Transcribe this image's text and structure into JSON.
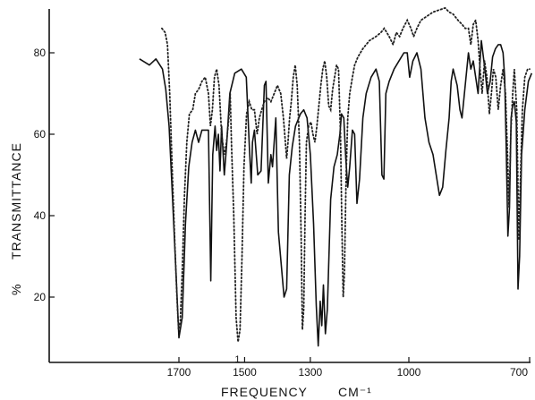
{
  "chart_data": {
    "type": "line",
    "xlabel": "FREQUENCY",
    "xunit": "CM⁻¹",
    "ylabel": "TRANSMITTANCE",
    "ylabel_prefix": "%",
    "x_ticks": [
      "1700",
      "1500",
      "1300",
      "1000",
      "700"
    ],
    "y_ticks": [
      "80",
      "60",
      "40",
      "20"
    ],
    "annotation": "1",
    "grid": false,
    "series": [
      {
        "style": "solid",
        "points": [
          [
            1820,
            78.5
          ],
          [
            1790,
            77
          ],
          [
            1770,
            78.5
          ],
          [
            1750,
            76
          ],
          [
            1740,
            71
          ],
          [
            1730,
            62
          ],
          [
            1720,
            45
          ],
          [
            1710,
            28
          ],
          [
            1700,
            10
          ],
          [
            1690,
            15
          ],
          [
            1680,
            38
          ],
          [
            1670,
            52
          ],
          [
            1660,
            58
          ],
          [
            1650,
            61
          ],
          [
            1640,
            58
          ],
          [
            1630,
            61
          ],
          [
            1610,
            61
          ],
          [
            1603,
            24
          ],
          [
            1597,
            55
          ],
          [
            1590,
            62
          ],
          [
            1585,
            56
          ],
          [
            1580,
            60
          ],
          [
            1575,
            51
          ],
          [
            1570,
            62
          ],
          [
            1562,
            50
          ],
          [
            1555,
            57
          ],
          [
            1545,
            70
          ],
          [
            1530,
            75
          ],
          [
            1510,
            76
          ],
          [
            1495,
            74
          ],
          [
            1485,
            56
          ],
          [
            1480,
            48
          ],
          [
            1476,
            58
          ],
          [
            1470,
            61
          ],
          [
            1460,
            50
          ],
          [
            1450,
            51
          ],
          [
            1440,
            72
          ],
          [
            1435,
            73
          ],
          [
            1428,
            48
          ],
          [
            1420,
            55
          ],
          [
            1415,
            52
          ],
          [
            1405,
            64
          ],
          [
            1397,
            36
          ],
          [
            1380,
            20
          ],
          [
            1372,
            22
          ],
          [
            1364,
            50
          ],
          [
            1355,
            57
          ],
          [
            1345,
            62
          ],
          [
            1330,
            65
          ],
          [
            1320,
            66
          ],
          [
            1310,
            64
          ],
          [
            1300,
            55
          ],
          [
            1290,
            38
          ],
          [
            1282,
            18
          ],
          [
            1276,
            8
          ],
          [
            1270,
            19
          ],
          [
            1265,
            13
          ],
          [
            1260,
            23
          ],
          [
            1254,
            11
          ],
          [
            1248,
            17
          ],
          [
            1238,
            44
          ],
          [
            1228,
            52
          ],
          [
            1218,
            55
          ],
          [
            1210,
            60
          ],
          [
            1205,
            65
          ],
          [
            1198,
            64
          ],
          [
            1192,
            54
          ],
          [
            1186,
            47
          ],
          [
            1180,
            52
          ],
          [
            1172,
            61
          ],
          [
            1165,
            60
          ],
          [
            1158,
            43
          ],
          [
            1150,
            49
          ],
          [
            1140,
            64
          ],
          [
            1130,
            70
          ],
          [
            1115,
            74
          ],
          [
            1100,
            76
          ],
          [
            1090,
            73
          ],
          [
            1082,
            50
          ],
          [
            1076,
            49
          ],
          [
            1070,
            70
          ],
          [
            1060,
            73
          ],
          [
            1045,
            76
          ],
          [
            1030,
            78
          ],
          [
            1015,
            80
          ],
          [
            1005,
            80
          ],
          [
            998,
            74
          ],
          [
            990,
            78
          ],
          [
            980,
            80
          ],
          [
            970,
            76
          ],
          [
            960,
            64
          ],
          [
            950,
            58
          ],
          [
            940,
            55
          ],
          [
            932,
            50
          ],
          [
            924,
            45
          ],
          [
            916,
            47
          ],
          [
            908,
            56
          ],
          [
            900,
            64
          ],
          [
            895,
            73
          ],
          [
            890,
            76
          ],
          [
            880,
            72
          ],
          [
            873,
            66
          ],
          [
            868,
            64
          ],
          [
            860,
            72
          ],
          [
            852,
            80
          ],
          [
            846,
            76
          ],
          [
            840,
            78
          ],
          [
            834,
            74
          ],
          [
            828,
            70
          ],
          [
            820,
            83
          ],
          [
            815,
            79
          ],
          [
            810,
            75
          ],
          [
            805,
            70
          ],
          [
            798,
            73
          ],
          [
            792,
            79
          ],
          [
            785,
            81
          ],
          [
            778,
            82
          ],
          [
            772,
            82
          ],
          [
            766,
            80
          ],
          [
            762,
            74
          ],
          [
            758,
            56
          ],
          [
            754,
            35
          ],
          [
            750,
            42
          ],
          [
            746,
            64
          ],
          [
            742,
            67
          ],
          [
            738,
            68
          ],
          [
            733,
            63
          ],
          [
            729,
            22
          ],
          [
            725,
            30
          ],
          [
            720,
            55
          ],
          [
            712,
            66
          ],
          [
            703,
            73
          ],
          [
            695,
            75
          ]
        ]
      },
      {
        "style": "dotted",
        "points": [
          [
            1752,
            86
          ],
          [
            1742,
            85
          ],
          [
            1735,
            82
          ],
          [
            1728,
            70
          ],
          [
            1720,
            50
          ],
          [
            1712,
            32
          ],
          [
            1706,
            20
          ],
          [
            1701,
            12
          ],
          [
            1696,
            14
          ],
          [
            1690,
            26
          ],
          [
            1683,
            45
          ],
          [
            1676,
            58
          ],
          [
            1668,
            65
          ],
          [
            1658,
            66
          ],
          [
            1650,
            70
          ],
          [
            1640,
            71
          ],
          [
            1630,
            73
          ],
          [
            1620,
            74
          ],
          [
            1610,
            70
          ],
          [
            1604,
            62
          ],
          [
            1598,
            66
          ],
          [
            1592,
            74
          ],
          [
            1585,
            76
          ],
          [
            1578,
            72
          ],
          [
            1570,
            60
          ],
          [
            1562,
            55
          ],
          [
            1555,
            58
          ],
          [
            1548,
            64
          ],
          [
            1544,
            70
          ],
          [
            1540,
            58
          ],
          [
            1533,
            40
          ],
          [
            1526,
            15
          ],
          [
            1520,
            9
          ],
          [
            1514,
            12
          ],
          [
            1508,
            30
          ],
          [
            1502,
            52
          ],
          [
            1494,
            65
          ],
          [
            1486,
            68
          ],
          [
            1478,
            66
          ],
          [
            1470,
            66
          ],
          [
            1462,
            60
          ],
          [
            1455,
            64
          ],
          [
            1448,
            66
          ],
          [
            1440,
            68
          ],
          [
            1430,
            69
          ],
          [
            1420,
            68
          ],
          [
            1410,
            70
          ],
          [
            1400,
            72
          ],
          [
            1390,
            70
          ],
          [
            1382,
            64
          ],
          [
            1376,
            58
          ],
          [
            1372,
            54
          ],
          [
            1368,
            58
          ],
          [
            1363,
            64
          ],
          [
            1358,
            68
          ],
          [
            1352,
            74
          ],
          [
            1346,
            77
          ],
          [
            1340,
            72
          ],
          [
            1333,
            58
          ],
          [
            1328,
            35
          ],
          [
            1324,
            12
          ],
          [
            1320,
            17
          ],
          [
            1316,
            40
          ],
          [
            1312,
            58
          ],
          [
            1305,
            62
          ],
          [
            1298,
            63
          ],
          [
            1292,
            60
          ],
          [
            1286,
            58
          ],
          [
            1280,
            62
          ],
          [
            1274,
            67
          ],
          [
            1268,
            72
          ],
          [
            1262,
            76
          ],
          [
            1256,
            78
          ],
          [
            1250,
            74
          ],
          [
            1244,
            67
          ],
          [
            1238,
            66
          ],
          [
            1232,
            71
          ],
          [
            1226,
            74
          ],
          [
            1220,
            77
          ],
          [
            1214,
            76
          ],
          [
            1208,
            60
          ],
          [
            1204,
            38
          ],
          [
            1200,
            20
          ],
          [
            1196,
            26
          ],
          [
            1191,
            50
          ],
          [
            1186,
            64
          ],
          [
            1180,
            70
          ],
          [
            1172,
            74
          ],
          [
            1165,
            77
          ],
          [
            1155,
            79
          ],
          [
            1140,
            81
          ],
          [
            1120,
            83
          ],
          [
            1100,
            84
          ],
          [
            1085,
            85
          ],
          [
            1075,
            86
          ],
          [
            1060,
            84
          ],
          [
            1048,
            82
          ],
          [
            1038,
            85
          ],
          [
            1028,
            84
          ],
          [
            1018,
            86
          ],
          [
            1005,
            88
          ],
          [
            995,
            86
          ],
          [
            988,
            84
          ],
          [
            980,
            86
          ],
          [
            970,
            88
          ],
          [
            955,
            89
          ],
          [
            940,
            90
          ],
          [
            925,
            90.5
          ],
          [
            910,
            91
          ],
          [
            900,
            90
          ],
          [
            890,
            89.5
          ],
          [
            878,
            88
          ],
          [
            868,
            87
          ],
          [
            860,
            86
          ],
          [
            852,
            86
          ],
          [
            846,
            82
          ],
          [
            840,
            87
          ],
          [
            834,
            88
          ],
          [
            828,
            83
          ],
          [
            823,
            76
          ],
          [
            818,
            70
          ],
          [
            812,
            78
          ],
          [
            806,
            74
          ],
          [
            800,
            65
          ],
          [
            795,
            70
          ],
          [
            790,
            76
          ],
          [
            784,
            74
          ],
          [
            778,
            66
          ],
          [
            772,
            72
          ],
          [
            766,
            76
          ],
          [
            760,
            70
          ],
          [
            755,
            55
          ],
          [
            751,
            42
          ],
          [
            747,
            60
          ],
          [
            742,
            70
          ],
          [
            738,
            76
          ],
          [
            732,
            66
          ],
          [
            727,
            34
          ],
          [
            723,
            48
          ],
          [
            718,
            66
          ],
          [
            712,
            74
          ],
          [
            705,
            76
          ],
          [
            700,
            76
          ]
        ]
      }
    ]
  }
}
